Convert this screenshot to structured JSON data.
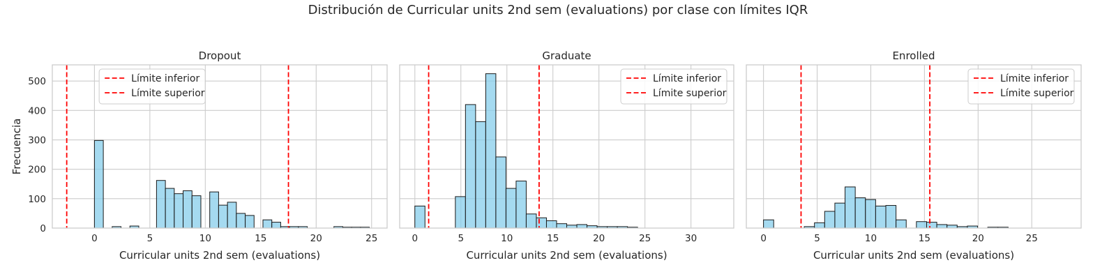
{
  "figure": {
    "title": "Distribución de Curricular units 2nd sem (evaluations) por clase con límites IQR"
  },
  "colors": {
    "bar_fill": "#87ceeb",
    "bar_edge": "#1a1a1a",
    "limit_line": "#ff0000",
    "grid": "#cccccc",
    "axes_edge": "#cccccc"
  },
  "chart_data": [
    {
      "type": "bar",
      "title": "Dropout",
      "xlabel": "Curricular units 2nd sem (evaluations)",
      "ylabel": "Frecuencia",
      "xlim": [
        -3.8,
        26.4
      ],
      "ylim": [
        0,
        555
      ],
      "xticks": [
        0,
        5,
        10,
        15,
        20,
        25
      ],
      "yticks": [
        0,
        100,
        200,
        300,
        400,
        500
      ],
      "grid": true,
      "legend_position": "top-center",
      "bin_width": 0.8,
      "bin_start": 0,
      "counts": [
        298,
        0,
        5,
        0,
        7,
        0,
        0,
        162,
        135,
        117,
        127,
        110,
        0,
        123,
        78,
        88,
        50,
        43,
        0,
        28,
        20,
        5,
        5,
        5,
        0,
        0,
        0,
        5,
        3,
        3,
        3
      ],
      "lines": [
        {
          "name": "Límite inferior",
          "x": -2.5
        },
        {
          "name": "Límite superior",
          "x": 17.5
        }
      ]
    },
    {
      "type": "bar",
      "title": "Graduate",
      "xlabel": "Curricular units 2nd sem (evaluations)",
      "ylabel": "",
      "xlim": [
        -1.65,
        34.65
      ],
      "ylim": [
        0,
        555
      ],
      "xticks": [
        0,
        5,
        10,
        15,
        20,
        25,
        30
      ],
      "yticks": [
        0,
        100,
        200,
        300,
        400,
        500
      ],
      "grid": true,
      "legend_position": "top-right",
      "bin_width": 1.1,
      "bin_start": 0,
      "counts": [
        75,
        0,
        0,
        0,
        107,
        420,
        362,
        525,
        242,
        135,
        160,
        48,
        35,
        25,
        15,
        10,
        12,
        8,
        5,
        5,
        5,
        3,
        0,
        0,
        0,
        0,
        0,
        0,
        0,
        0
      ],
      "lines": [
        {
          "name": "Límite inferior",
          "x": 1.5
        },
        {
          "name": "Límite superior",
          "x": 13.5
        }
      ]
    },
    {
      "type": "bar",
      "title": "Enrolled",
      "xlabel": "Curricular units 2nd sem (evaluations)",
      "ylabel": "",
      "xlim": [
        -1.6,
        29.6
      ],
      "ylim": [
        0,
        555
      ],
      "xticks": [
        0,
        5,
        10,
        15,
        20,
        25
      ],
      "yticks": [
        0,
        100,
        200,
        300,
        400,
        500
      ],
      "grid": true,
      "legend_position": "top-right",
      "bin_width": 0.95,
      "bin_start": 0,
      "counts": [
        28,
        0,
        0,
        0,
        5,
        18,
        57,
        85,
        140,
        103,
        97,
        75,
        77,
        28,
        0,
        22,
        20,
        12,
        10,
        5,
        7,
        0,
        3,
        3,
        0,
        0,
        0,
        0,
        0,
        0
      ],
      "lines": [
        {
          "name": "Límite inferior",
          "x": 3.5
        },
        {
          "name": "Límite superior",
          "x": 15.5
        }
      ]
    }
  ]
}
